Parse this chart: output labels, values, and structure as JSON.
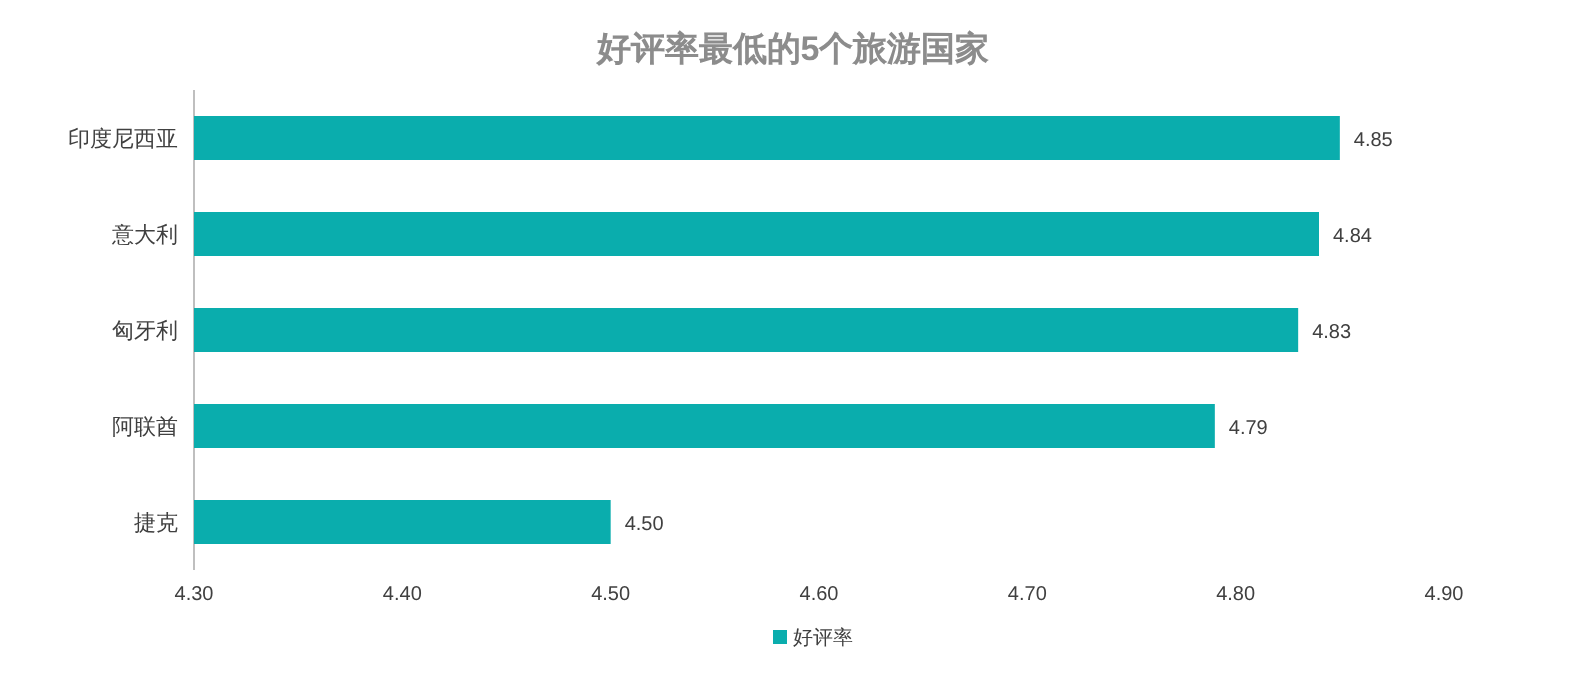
{
  "chart_data": {
    "type": "bar",
    "orientation": "horizontal",
    "title": "好评率最低的5个旅游国家",
    "categories": [
      "印度尼西亚",
      "意大利",
      "匈牙利",
      "阿联酋",
      "捷克"
    ],
    "series": [
      {
        "name": "好评率",
        "color": "#0aadad",
        "values": [
          4.85,
          4.84,
          4.83,
          4.79,
          4.5
        ]
      }
    ],
    "xlim": [
      4.3,
      4.9
    ],
    "xticks": [
      {
        "value": 4.3,
        "label": "4.30"
      },
      {
        "value": 4.4,
        "label": "4.40"
      },
      {
        "value": 4.5,
        "label": "4.50"
      },
      {
        "value": 4.6,
        "label": "4.60"
      },
      {
        "value": 4.7,
        "label": "4.70"
      },
      {
        "value": 4.8,
        "label": "4.80"
      },
      {
        "value": 4.9,
        "label": "4.90"
      }
    ],
    "value_labels": [
      "4.85",
      "4.84",
      "4.83",
      "4.79",
      "4.50"
    ],
    "legend": "bottom",
    "grid": false
  }
}
